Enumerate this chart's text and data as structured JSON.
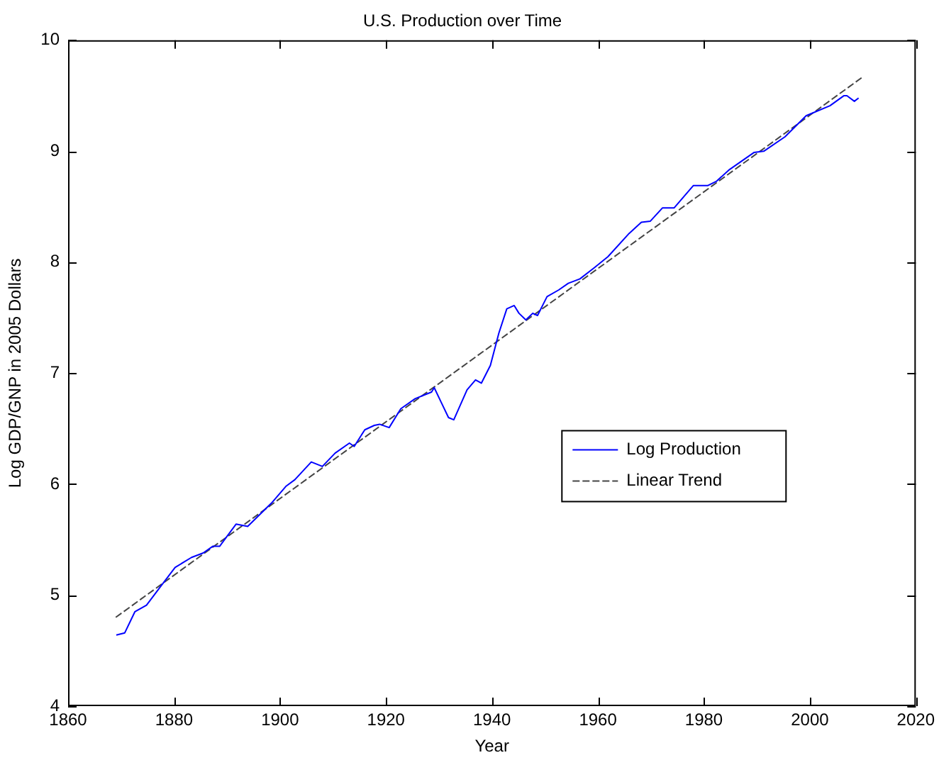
{
  "chart_data": {
    "type": "line",
    "title": "U.S. Production over Time",
    "xlabel": "Year",
    "ylabel": "Log GDP/GNP in 2005 Dollars",
    "xlim": [
      1860,
      2020
    ],
    "xticks": [
      1860,
      1880,
      1900,
      1920,
      1940,
      1960,
      1980,
      2000,
      2020
    ],
    "ylim": [
      4,
      10
    ],
    "yticks": [
      4,
      5,
      6,
      7,
      8,
      9,
      10
    ],
    "grid": false,
    "legend": "right",
    "marker": "none",
    "series": [
      {
        "name": "Log Production",
        "color": "#0000ff",
        "line_style": "solid",
        "x": [
          1869.1,
          1870.7,
          1872.6,
          1874.8,
          1877.5,
          1880.2,
          1883.3,
          1885.5,
          1887.3,
          1888.6,
          1891.7,
          1893.9,
          1898.4,
          1901.1,
          1902.8,
          1905.9,
          1908,
          1910.4,
          1913.1,
          1914,
          1916,
          1917.8,
          1918.8,
          1920.6,
          1922.8,
          1925.5,
          1928.6,
          1929.1,
          1930.4,
          1931.8,
          1932.8,
          1935.3,
          1936.9,
          1938,
          1939.7,
          1941.3,
          1942.8,
          1944.2,
          1945.1,
          1946.4,
          1947.7,
          1948.6,
          1950.4,
          1952.6,
          1954.4,
          1956.6,
          1959.3,
          1961.9,
          1965.9,
          1968.2,
          1969.9,
          1972.2,
          1974.4,
          1978,
          1980.7,
          1982.4,
          1984.7,
          1989.5,
          1991.3,
          1995.3,
          1999.3,
          2003.8,
          2006.4,
          2007,
          2008.4,
          2009.2
        ],
        "values": [
          4.64,
          4.66,
          4.85,
          4.91,
          5.08,
          5.25,
          5.34,
          5.38,
          5.44,
          5.44,
          5.64,
          5.62,
          5.83,
          5.98,
          6.04,
          6.2,
          6.16,
          6.28,
          6.37,
          6.34,
          6.49,
          6.53,
          6.54,
          6.51,
          6.68,
          6.77,
          6.83,
          6.87,
          6.74,
          6.6,
          6.58,
          6.85,
          6.94,
          6.91,
          7.07,
          7.36,
          7.58,
          7.61,
          7.54,
          7.48,
          7.54,
          7.52,
          7.69,
          7.75,
          7.81,
          7.85,
          7.95,
          8.05,
          8.26,
          8.36,
          8.37,
          8.49,
          8.49,
          8.69,
          8.69,
          8.73,
          8.83,
          8.99,
          9,
          9.13,
          9.32,
          9.41,
          9.5,
          9.5,
          9.45,
          9.48
        ]
      },
      {
        "name": "Linear Trend",
        "color": "#444444",
        "line_style": "dashed",
        "x": [
          1869,
          2010
        ],
        "values": [
          4.8,
          9.67
        ]
      }
    ]
  }
}
